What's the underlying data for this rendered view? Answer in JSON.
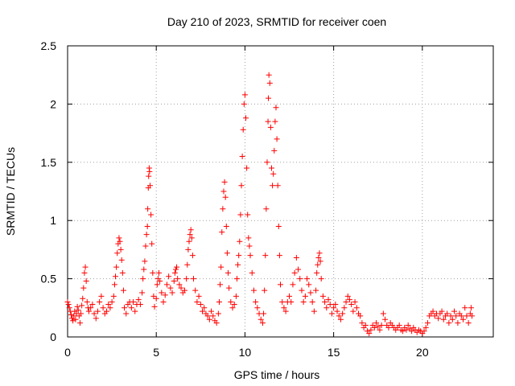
{
  "chart_data": {
    "type": "scatter",
    "title": "Day 210 of 2023, SRMTID for receiver coen",
    "xlabel": "GPS time / hours",
    "ylabel": "SRMTID / TECUs",
    "xlim": [
      0,
      24
    ],
    "ylim": [
      0,
      2.5
    ],
    "xticks": [
      0,
      5,
      10,
      15,
      20
    ],
    "yticks": [
      0,
      0.5,
      1,
      1.5,
      2,
      2.5
    ],
    "xtick_labels": [
      "0",
      "5",
      "10",
      "15",
      "20"
    ],
    "ytick_labels": [
      "0",
      "0.5",
      "1",
      "1.5",
      "2",
      "2.5"
    ],
    "grid": true,
    "marker": "+",
    "color": "#ff0000",
    "series": [
      {
        "name": "SRMTID",
        "points": [
          [
            0.0,
            0.3
          ],
          [
            0.05,
            0.28
          ],
          [
            0.1,
            0.25
          ],
          [
            0.15,
            0.22
          ],
          [
            0.2,
            0.19
          ],
          [
            0.25,
            0.16
          ],
          [
            0.3,
            0.14
          ],
          [
            0.35,
            0.18
          ],
          [
            0.4,
            0.22
          ],
          [
            0.45,
            0.15
          ],
          [
            0.5,
            0.2
          ],
          [
            0.55,
            0.26
          ],
          [
            0.6,
            0.23
          ],
          [
            0.65,
            0.18
          ],
          [
            0.7,
            0.12
          ],
          [
            0.75,
            0.2
          ],
          [
            0.8,
            0.27
          ],
          [
            0.85,
            0.33
          ],
          [
            0.9,
            0.42
          ],
          [
            0.95,
            0.55
          ],
          [
            1.0,
            0.6
          ],
          [
            1.05,
            0.48
          ],
          [
            1.1,
            0.3
          ],
          [
            1.15,
            0.25
          ],
          [
            1.2,
            0.22
          ],
          [
            1.3,
            0.25
          ],
          [
            1.4,
            0.28
          ],
          [
            1.5,
            0.2
          ],
          [
            1.6,
            0.16
          ],
          [
            1.7,
            0.22
          ],
          [
            1.8,
            0.3
          ],
          [
            1.9,
            0.35
          ],
          [
            2.0,
            0.25
          ],
          [
            2.1,
            0.2
          ],
          [
            2.2,
            0.22
          ],
          [
            2.3,
            0.28
          ],
          [
            2.4,
            0.25
          ],
          [
            2.5,
            0.3
          ],
          [
            2.6,
            0.35
          ],
          [
            2.65,
            0.45
          ],
          [
            2.7,
            0.52
          ],
          [
            2.75,
            0.6
          ],
          [
            2.8,
            0.72
          ],
          [
            2.85,
            0.8
          ],
          [
            2.9,
            0.85
          ],
          [
            2.95,
            0.82
          ],
          [
            3.0,
            0.75
          ],
          [
            3.05,
            0.66
          ],
          [
            3.1,
            0.55
          ],
          [
            3.15,
            0.4
          ],
          [
            3.2,
            0.25
          ],
          [
            3.3,
            0.2
          ],
          [
            3.4,
            0.28
          ],
          [
            3.5,
            0.3
          ],
          [
            3.6,
            0.25
          ],
          [
            3.7,
            0.3
          ],
          [
            3.8,
            0.22
          ],
          [
            3.9,
            0.28
          ],
          [
            4.0,
            0.32
          ],
          [
            4.1,
            0.28
          ],
          [
            4.2,
            0.38
          ],
          [
            4.25,
            0.5
          ],
          [
            4.3,
            0.58
          ],
          [
            4.35,
            0.65
          ],
          [
            4.4,
            0.78
          ],
          [
            4.45,
            0.88
          ],
          [
            4.5,
            0.95
          ],
          [
            4.52,
            1.1
          ],
          [
            4.55,
            1.28
          ],
          [
            4.57,
            1.38
          ],
          [
            4.6,
            1.45
          ],
          [
            4.62,
            1.42
          ],
          [
            4.65,
            1.3
          ],
          [
            4.7,
            1.05
          ],
          [
            4.75,
            0.8
          ],
          [
            4.8,
            0.55
          ],
          [
            4.85,
            0.35
          ],
          [
            4.9,
            0.26
          ],
          [
            5.0,
            0.33
          ],
          [
            5.05,
            0.45
          ],
          [
            5.1,
            0.5
          ],
          [
            5.15,
            0.55
          ],
          [
            5.2,
            0.48
          ],
          [
            5.3,
            0.38
          ],
          [
            5.4,
            0.3
          ],
          [
            5.5,
            0.36
          ],
          [
            5.6,
            0.45
          ],
          [
            5.7,
            0.52
          ],
          [
            5.8,
            0.42
          ],
          [
            5.9,
            0.38
          ],
          [
            6.0,
            0.48
          ],
          [
            6.05,
            0.55
          ],
          [
            6.1,
            0.58
          ],
          [
            6.15,
            0.6
          ],
          [
            6.2,
            0.5
          ],
          [
            6.3,
            0.45
          ],
          [
            6.4,
            0.42
          ],
          [
            6.5,
            0.38
          ],
          [
            6.6,
            0.4
          ],
          [
            6.7,
            0.5
          ],
          [
            6.75,
            0.62
          ],
          [
            6.8,
            0.75
          ],
          [
            6.85,
            0.82
          ],
          [
            6.9,
            0.88
          ],
          [
            6.95,
            0.92
          ],
          [
            7.0,
            0.85
          ],
          [
            7.05,
            0.7
          ],
          [
            7.1,
            0.5
          ],
          [
            7.2,
            0.4
          ],
          [
            7.3,
            0.3
          ],
          [
            7.4,
            0.35
          ],
          [
            7.5,
            0.28
          ],
          [
            7.6,
            0.22
          ],
          [
            7.7,
            0.25
          ],
          [
            7.8,
            0.2
          ],
          [
            7.9,
            0.18
          ],
          [
            8.0,
            0.15
          ],
          [
            8.1,
            0.22
          ],
          [
            8.2,
            0.18
          ],
          [
            8.3,
            0.14
          ],
          [
            8.4,
            0.12
          ],
          [
            8.5,
            0.2
          ],
          [
            8.55,
            0.3
          ],
          [
            8.6,
            0.45
          ],
          [
            8.65,
            0.6
          ],
          [
            8.7,
            0.9
          ],
          [
            8.75,
            1.1
          ],
          [
            8.8,
            1.25
          ],
          [
            8.85,
            1.33
          ],
          [
            8.9,
            1.2
          ],
          [
            8.95,
            0.95
          ],
          [
            9.0,
            0.72
          ],
          [
            9.05,
            0.55
          ],
          [
            9.1,
            0.42
          ],
          [
            9.2,
            0.3
          ],
          [
            9.3,
            0.25
          ],
          [
            9.4,
            0.28
          ],
          [
            9.5,
            0.35
          ],
          [
            9.55,
            0.5
          ],
          [
            9.6,
            0.62
          ],
          [
            9.65,
            0.7
          ],
          [
            9.7,
            0.82
          ],
          [
            9.75,
            1.05
          ],
          [
            9.8,
            1.3
          ],
          [
            9.85,
            1.55
          ],
          [
            9.9,
            1.78
          ],
          [
            9.95,
            2.0
          ],
          [
            10.0,
            2.08
          ],
          [
            10.05,
            1.88
          ],
          [
            10.1,
            1.45
          ],
          [
            10.15,
            1.05
          ],
          [
            10.2,
            0.85
          ],
          [
            10.25,
            0.78
          ],
          [
            10.3,
            0.7
          ],
          [
            10.4,
            0.55
          ],
          [
            10.5,
            0.4
          ],
          [
            10.6,
            0.3
          ],
          [
            10.7,
            0.25
          ],
          [
            10.8,
            0.2
          ],
          [
            10.9,
            0.15
          ],
          [
            11.0,
            0.12
          ],
          [
            11.05,
            0.2
          ],
          [
            11.1,
            0.4
          ],
          [
            11.15,
            0.7
          ],
          [
            11.2,
            1.1
          ],
          [
            11.25,
            1.5
          ],
          [
            11.3,
            1.85
          ],
          [
            11.32,
            2.05
          ],
          [
            11.35,
            2.25
          ],
          [
            11.4,
            2.18
          ],
          [
            11.45,
            1.8
          ],
          [
            11.5,
            1.45
          ],
          [
            11.55,
            1.3
          ],
          [
            11.6,
            1.4
          ],
          [
            11.65,
            1.6
          ],
          [
            11.7,
            1.85
          ],
          [
            11.75,
            1.97
          ],
          [
            11.8,
            1.7
          ],
          [
            11.85,
            1.3
          ],
          [
            11.9,
            0.95
          ],
          [
            11.95,
            0.7
          ],
          [
            12.0,
            0.45
          ],
          [
            12.1,
            0.3
          ],
          [
            12.2,
            0.25
          ],
          [
            12.3,
            0.22
          ],
          [
            12.4,
            0.3
          ],
          [
            12.5,
            0.35
          ],
          [
            12.6,
            0.3
          ],
          [
            12.7,
            0.45
          ],
          [
            12.8,
            0.55
          ],
          [
            12.9,
            0.68
          ],
          [
            13.0,
            0.58
          ],
          [
            13.1,
            0.5
          ],
          [
            13.2,
            0.4
          ],
          [
            13.3,
            0.3
          ],
          [
            13.4,
            0.35
          ],
          [
            13.5,
            0.5
          ],
          [
            13.6,
            0.45
          ],
          [
            13.7,
            0.38
          ],
          [
            13.8,
            0.3
          ],
          [
            13.9,
            0.22
          ],
          [
            14.0,
            0.4
          ],
          [
            14.05,
            0.55
          ],
          [
            14.1,
            0.62
          ],
          [
            14.15,
            0.68
          ],
          [
            14.2,
            0.72
          ],
          [
            14.25,
            0.65
          ],
          [
            14.3,
            0.5
          ],
          [
            14.4,
            0.35
          ],
          [
            14.5,
            0.3
          ],
          [
            14.6,
            0.25
          ],
          [
            14.7,
            0.32
          ],
          [
            14.8,
            0.28
          ],
          [
            14.9,
            0.2
          ],
          [
            15.0,
            0.25
          ],
          [
            15.1,
            0.28
          ],
          [
            15.2,
            0.22
          ],
          [
            15.3,
            0.18
          ],
          [
            15.4,
            0.15
          ],
          [
            15.5,
            0.2
          ],
          [
            15.6,
            0.25
          ],
          [
            15.7,
            0.3
          ],
          [
            15.8,
            0.35
          ],
          [
            15.9,
            0.32
          ],
          [
            16.0,
            0.28
          ],
          [
            16.1,
            0.22
          ],
          [
            16.2,
            0.3
          ],
          [
            16.3,
            0.25
          ],
          [
            16.4,
            0.2
          ],
          [
            16.5,
            0.18
          ],
          [
            16.6,
            0.12
          ],
          [
            16.7,
            0.08
          ],
          [
            16.8,
            0.1
          ],
          [
            16.9,
            0.05
          ],
          [
            17.0,
            0.03
          ],
          [
            17.1,
            0.06
          ],
          [
            17.2,
            0.1
          ],
          [
            17.3,
            0.08
          ],
          [
            17.4,
            0.12
          ],
          [
            17.5,
            0.09
          ],
          [
            17.6,
            0.06
          ],
          [
            17.7,
            0.1
          ],
          [
            17.8,
            0.2
          ],
          [
            17.9,
            0.15
          ],
          [
            18.0,
            0.1
          ],
          [
            18.1,
            0.08
          ],
          [
            18.2,
            0.12
          ],
          [
            18.3,
            0.1
          ],
          [
            18.4,
            0.08
          ],
          [
            18.5,
            0.06
          ],
          [
            18.6,
            0.08
          ],
          [
            18.7,
            0.1
          ],
          [
            18.8,
            0.06
          ],
          [
            18.9,
            0.05
          ],
          [
            19.0,
            0.08
          ],
          [
            19.1,
            0.06
          ],
          [
            19.2,
            0.1
          ],
          [
            19.3,
            0.07
          ],
          [
            19.4,
            0.05
          ],
          [
            19.5,
            0.08
          ],
          [
            19.6,
            0.06
          ],
          [
            19.7,
            0.04
          ],
          [
            19.8,
            0.06
          ],
          [
            19.9,
            0.05
          ],
          [
            20.0,
            0.03
          ],
          [
            20.1,
            0.05
          ],
          [
            20.2,
            0.08
          ],
          [
            20.3,
            0.12
          ],
          [
            20.4,
            0.18
          ],
          [
            20.5,
            0.2
          ],
          [
            20.6,
            0.22
          ],
          [
            20.7,
            0.18
          ],
          [
            20.8,
            0.2
          ],
          [
            20.9,
            0.16
          ],
          [
            21.0,
            0.2
          ],
          [
            21.1,
            0.22
          ],
          [
            21.2,
            0.15
          ],
          [
            21.3,
            0.18
          ],
          [
            21.4,
            0.2
          ],
          [
            21.5,
            0.12
          ],
          [
            21.6,
            0.18
          ],
          [
            21.7,
            0.15
          ],
          [
            21.8,
            0.22
          ],
          [
            21.9,
            0.18
          ],
          [
            22.0,
            0.12
          ],
          [
            22.1,
            0.2
          ],
          [
            22.2,
            0.18
          ],
          [
            22.3,
            0.15
          ],
          [
            22.4,
            0.25
          ],
          [
            22.5,
            0.18
          ],
          [
            22.6,
            0.12
          ],
          [
            22.7,
            0.2
          ],
          [
            22.75,
            0.25
          ],
          [
            22.8,
            0.18
          ]
        ]
      }
    ]
  }
}
